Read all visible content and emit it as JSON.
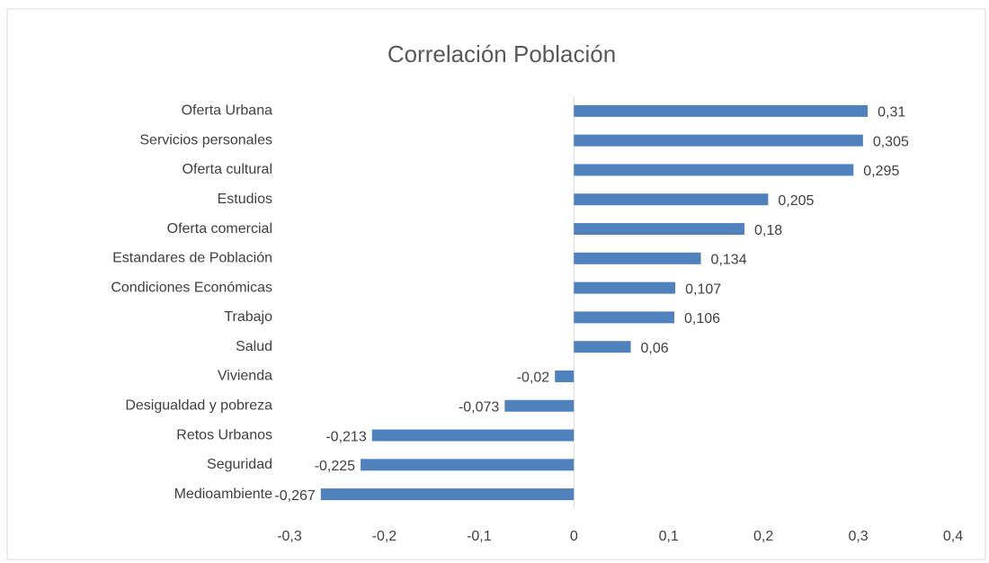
{
  "chart_data": {
    "type": "bar",
    "orientation": "horizontal",
    "title": "Correlación Población",
    "categories": [
      "Oferta Urbana",
      "Servicios personales",
      "Oferta cultural",
      "Estudios",
      "Oferta comercial",
      "Estandares de Población",
      "Condiciones Económicas",
      "Trabajo",
      "Salud",
      "Vivienda",
      "Desigualdad y pobreza",
      "Retos Urbanos",
      "Seguridad",
      "Medioambiente"
    ],
    "values": [
      0.31,
      0.305,
      0.295,
      0.205,
      0.18,
      0.134,
      0.107,
      0.106,
      0.06,
      -0.02,
      -0.073,
      -0.213,
      -0.225,
      -0.267
    ],
    "value_labels": [
      "0,31",
      "0,305",
      "0,295",
      "0,205",
      "0,18",
      "0,134",
      "0,107",
      "0,106",
      "0,06",
      "-0,02",
      "-0,073",
      "-0,213",
      "-0,225",
      "-0,267"
    ],
    "color": "#4f81bd",
    "xlim": [
      -0.3,
      0.4
    ],
    "xticks": [
      {
        "value": -0.3,
        "label": "-0,3"
      },
      {
        "value": -0.2,
        "label": "-0,2"
      },
      {
        "value": -0.1,
        "label": "-0,1"
      },
      0,
      {
        "value": 0.1,
        "label": "0,1"
      },
      {
        "value": 0.2,
        "label": "0,2"
      },
      {
        "value": 0.3,
        "label": "0,3"
      },
      {
        "value": 0.4,
        "label": "0,4"
      }
    ],
    "grid": false
  }
}
